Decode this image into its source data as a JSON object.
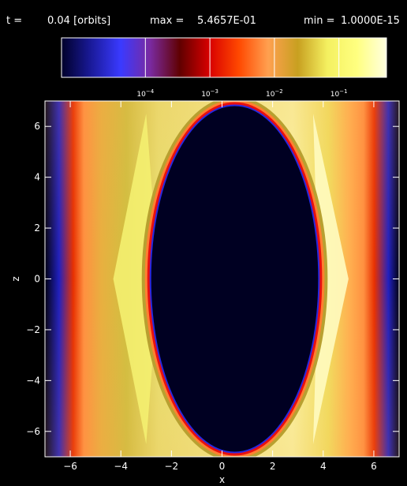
{
  "header": {
    "t_label": "t =",
    "t_value": "0.04 [orbits]",
    "max_label": "max =",
    "max_value": "5.4657E-01",
    "min_label": "min =",
    "min_value": "1.0000E-15"
  },
  "chart_data": {
    "type": "heatmap",
    "title": "",
    "xlabel": "x",
    "ylabel": "z",
    "xlim": [
      -7,
      7
    ],
    "ylim": [
      -7,
      7
    ],
    "x_ticks": [
      -6,
      -4,
      -2,
      0,
      2,
      4,
      6
    ],
    "y_ticks": [
      -6,
      -4,
      -2,
      0,
      2,
      4,
      6
    ],
    "x_tick_labels": [
      "−6",
      "−4",
      "−2",
      "0",
      "2",
      "4",
      "6"
    ],
    "y_tick_labels": [
      "−6",
      "−4",
      "−2",
      "0",
      "2",
      "4",
      "6"
    ],
    "value_max": 0.54657,
    "value_min": 1e-15,
    "colorbar": {
      "scale": "log",
      "ticks": [
        {
          "base": "10",
          "exp": "−4",
          "value": 0.0001
        },
        {
          "base": "10",
          "exp": "−3",
          "value": 0.001
        },
        {
          "base": "10",
          "exp": "−2",
          "value": 0.01
        },
        {
          "base": "10",
          "exp": "−1",
          "value": 0.1
        }
      ],
      "colors": [
        "#00002a",
        "#1a1a9a",
        "#3a3aff",
        "#7a2aa0",
        "#600000",
        "#d80000",
        "#ff4800",
        "#ffa050",
        "#c8a020",
        "#f4f060",
        "#ffff80",
        "#ffffe0"
      ]
    },
    "features": {
      "inner_cavity": {
        "center_x": 0.5,
        "semi_axis_x": 3.3,
        "semi_axis_z": 6.8
      },
      "outer_walls": {
        "left_x": -4.9,
        "right_x": 5.8
      },
      "shock_vertex_left_x": -4.3,
      "shock_vertex_right_x": 5.0
    }
  }
}
